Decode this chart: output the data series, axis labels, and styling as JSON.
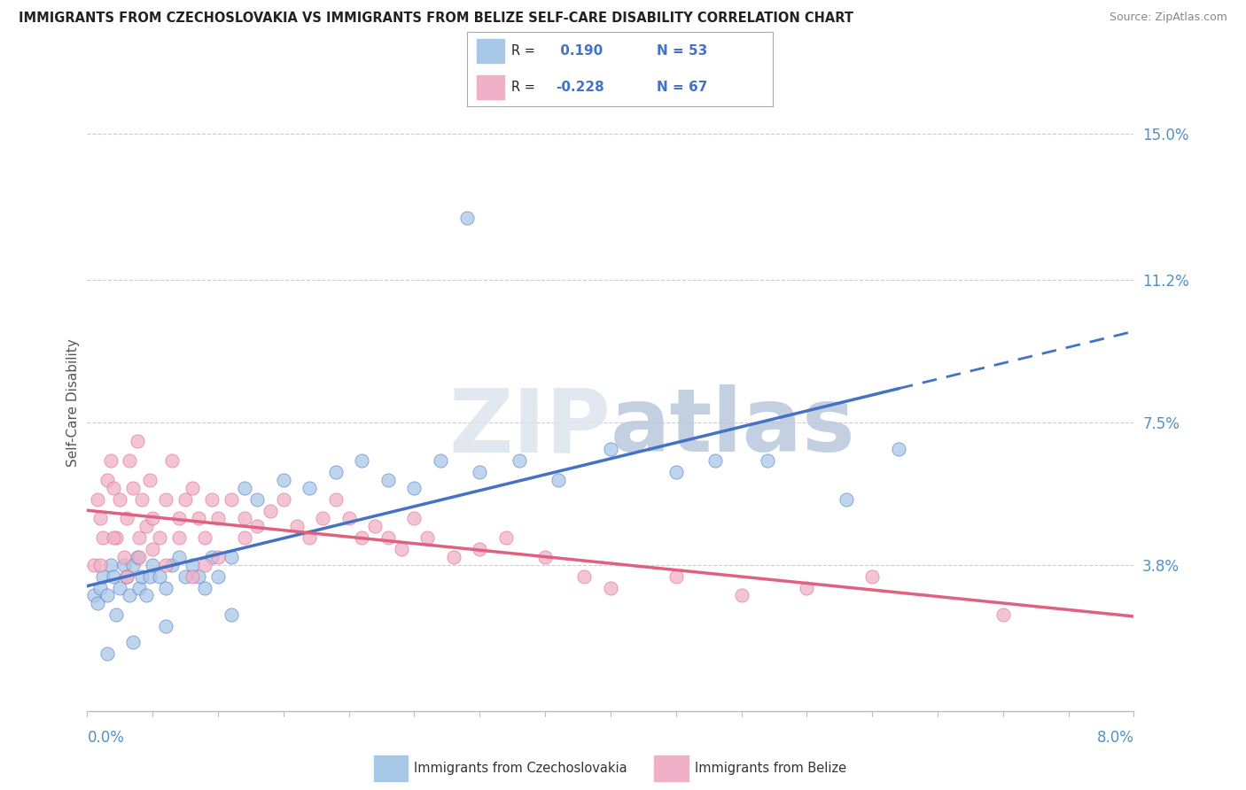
{
  "title": "IMMIGRANTS FROM CZECHOSLOVAKIA VS IMMIGRANTS FROM BELIZE SELF-CARE DISABILITY CORRELATION CHART",
  "source": "Source: ZipAtlas.com",
  "ylabel": "Self-Care Disability",
  "r_czech": 0.19,
  "n_czech": 53,
  "r_belize": -0.228,
  "n_belize": 67,
  "color_czech": "#a8c8e8",
  "color_belize": "#f0b0c8",
  "color_czech_line": "#4472c4",
  "color_belize_line": "#e06080",
  "xmin": 0.0,
  "xmax": 8.0,
  "ymin": 0.0,
  "ymax": 16.0,
  "yticks": [
    3.8,
    7.5,
    11.2,
    15.0
  ],
  "ytick_labels": [
    "3.8%",
    "7.5%",
    "11.2%",
    "15.0%"
  ],
  "background_color": "#ffffff",
  "legend_label_czech": "Immigrants from Czechoslovakia",
  "legend_label_belize": "Immigrants from Belize",
  "czech_x": [
    0.05,
    0.08,
    0.1,
    0.12,
    0.15,
    0.18,
    0.2,
    0.22,
    0.25,
    0.28,
    0.3,
    0.32,
    0.35,
    0.38,
    0.4,
    0.42,
    0.45,
    0.48,
    0.5,
    0.55,
    0.6,
    0.65,
    0.7,
    0.75,
    0.8,
    0.85,
    0.9,
    0.95,
    1.0,
    1.1,
    1.2,
    1.3,
    1.5,
    1.7,
    1.9,
    2.1,
    2.3,
    2.5,
    2.7,
    3.0,
    3.3,
    3.6,
    4.0,
    4.5,
    4.8,
    5.2,
    5.8,
    6.2,
    0.15,
    0.35,
    0.6,
    1.1,
    2.9
  ],
  "czech_y": [
    3.0,
    2.8,
    3.2,
    3.5,
    3.0,
    3.8,
    3.5,
    2.5,
    3.2,
    3.8,
    3.5,
    3.0,
    3.8,
    4.0,
    3.2,
    3.5,
    3.0,
    3.5,
    3.8,
    3.5,
    3.2,
    3.8,
    4.0,
    3.5,
    3.8,
    3.5,
    3.2,
    4.0,
    3.5,
    4.0,
    5.8,
    5.5,
    6.0,
    5.8,
    6.2,
    6.5,
    6.0,
    5.8,
    6.5,
    6.2,
    6.5,
    6.0,
    6.8,
    6.2,
    6.5,
    6.5,
    5.5,
    6.8,
    1.5,
    1.8,
    2.2,
    2.5,
    12.8
  ],
  "belize_x": [
    0.05,
    0.08,
    0.1,
    0.12,
    0.15,
    0.18,
    0.2,
    0.22,
    0.25,
    0.28,
    0.3,
    0.32,
    0.35,
    0.38,
    0.4,
    0.42,
    0.45,
    0.48,
    0.5,
    0.55,
    0.6,
    0.65,
    0.7,
    0.75,
    0.8,
    0.85,
    0.9,
    0.95,
    1.0,
    1.1,
    1.2,
    1.3,
    1.4,
    1.5,
    1.6,
    1.7,
    1.8,
    1.9,
    2.0,
    2.1,
    2.2,
    2.3,
    2.4,
    2.5,
    2.6,
    2.8,
    3.0,
    3.2,
    3.5,
    3.8,
    4.0,
    4.5,
    5.0,
    5.5,
    6.0,
    7.0,
    0.1,
    0.2,
    0.3,
    0.4,
    0.5,
    0.6,
    0.7,
    0.8,
    0.9,
    1.0,
    1.2
  ],
  "belize_y": [
    3.8,
    5.5,
    5.0,
    4.5,
    6.0,
    6.5,
    5.8,
    4.5,
    5.5,
    4.0,
    5.0,
    6.5,
    5.8,
    7.0,
    4.5,
    5.5,
    4.8,
    6.0,
    5.0,
    4.5,
    5.5,
    6.5,
    5.0,
    5.5,
    5.8,
    5.0,
    4.5,
    5.5,
    5.0,
    5.5,
    5.0,
    4.8,
    5.2,
    5.5,
    4.8,
    4.5,
    5.0,
    5.5,
    5.0,
    4.5,
    4.8,
    4.5,
    4.2,
    5.0,
    4.5,
    4.0,
    4.2,
    4.5,
    4.0,
    3.5,
    3.2,
    3.5,
    3.0,
    3.2,
    3.5,
    2.5,
    3.8,
    4.5,
    3.5,
    4.0,
    4.2,
    3.8,
    4.5,
    3.5,
    3.8,
    4.0,
    4.5
  ]
}
